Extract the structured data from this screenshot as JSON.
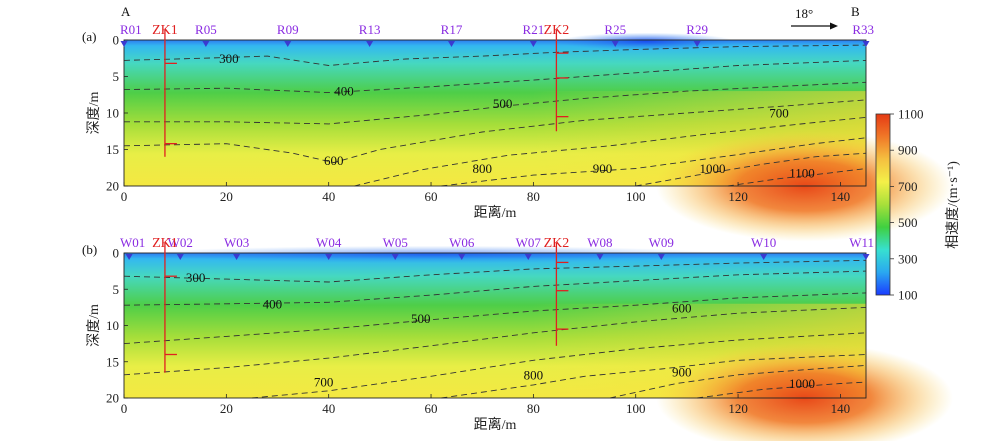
{
  "corner_labels": {
    "left": "A",
    "right": "B"
  },
  "direction_label": "18°",
  "colorbar": {
    "title": "相速度/(m·s⁻¹)",
    "ticks": [
      100,
      300,
      500,
      700,
      900,
      1100
    ],
    "range": [
      100,
      1100
    ],
    "colors": [
      "#1a3cff",
      "#2aa8f0",
      "#37e0d0",
      "#40d040",
      "#a8e03a",
      "#f4f048",
      "#f5c040",
      "#f07828",
      "#e53a14"
    ]
  },
  "chart_data": [
    {
      "type": "heatmap",
      "panel_label": "(a)",
      "xlabel": "距离/m",
      "ylabel": "深度/m",
      "xlim": [
        0,
        145
      ],
      "ylim": [
        0,
        20
      ],
      "x_ticks": [
        0,
        20,
        40,
        60,
        80,
        100,
        120,
        140
      ],
      "y_ticks": [
        0,
        5,
        10,
        15,
        20
      ],
      "stations": [
        {
          "name": "R01",
          "x": 0
        },
        {
          "name": "R05",
          "x": 16
        },
        {
          "name": "R09",
          "x": 32
        },
        {
          "name": "R13",
          "x": 48
        },
        {
          "name": "R17",
          "x": 64
        },
        {
          "name": "R21",
          "x": 80
        },
        {
          "name": "R25",
          "x": 96
        },
        {
          "name": "R29",
          "x": 112
        },
        {
          "name": "R33",
          "x": 145
        }
      ],
      "boreholes": [
        {
          "name": "ZK1",
          "x": 8,
          "depth": 16,
          "marks": [
            3.2,
            14.2
          ]
        },
        {
          "name": "ZK2",
          "x": 84.5,
          "depth": 12.5,
          "marks": [
            1.8,
            5.2,
            10.5
          ]
        }
      ],
      "contours": [
        {
          "label": "300",
          "label_x": 20.5,
          "label_y": 2.5,
          "points": [
            [
              0,
              2.8
            ],
            [
              15,
              2.5
            ],
            [
              28,
              2.2
            ],
            [
              40,
              3.5
            ],
            [
              55,
              2.6
            ],
            [
              70,
              2.2
            ],
            [
              84,
              1.7
            ],
            [
              100,
              1.3
            ],
            [
              120,
              0.9
            ],
            [
              145,
              0.7
            ]
          ]
        },
        {
          "label": "400",
          "label_x": 43,
          "label_y": 7.0,
          "points": [
            [
              0,
              6.8
            ],
            [
              20,
              6.6
            ],
            [
              40,
              7.2
            ],
            [
              60,
              6.4
            ],
            [
              84,
              5.3
            ],
            [
              100,
              4.5
            ],
            [
              120,
              3.5
            ],
            [
              145,
              2.8
            ]
          ]
        },
        {
          "label": "500",
          "label_x": 74,
          "label_y": 8.7,
          "points": [
            [
              0,
              11.2
            ],
            [
              20,
              11.2
            ],
            [
              40,
              11.5
            ],
            [
              60,
              10.2
            ],
            [
              75,
              9.0
            ],
            [
              90,
              8.0
            ],
            [
              110,
              7.0
            ],
            [
              130,
              6.3
            ],
            [
              145,
              5.8
            ]
          ]
        },
        {
          "label": "600",
          "label_x": 41,
          "label_y": 16.5,
          "points": [
            [
              0,
              14.5
            ],
            [
              20,
              14.2
            ],
            [
              33,
              15.5
            ],
            [
              41,
              16.8
            ],
            [
              50,
              15.0
            ],
            [
              70,
              12.6
            ],
            [
              90,
              11.0
            ],
            [
              110,
              10.0
            ],
            [
              130,
              9.0
            ],
            [
              145,
              8.2
            ]
          ]
        },
        {
          "label": "700",
          "label_x": 128,
          "label_y": 10.0,
          "points": [
            [
              45,
              20
            ],
            [
              58,
              17.8
            ],
            [
              75,
              15.8
            ],
            [
              95,
              14.5
            ],
            [
              115,
              12.8
            ],
            [
              135,
              11.3
            ],
            [
              145,
              10.6
            ]
          ]
        },
        {
          "label": "800",
          "label_x": 70,
          "label_y": 17.6,
          "points": [
            [
              62,
              20
            ],
            [
              80,
              18.5
            ],
            [
              100,
              17.6
            ],
            [
              120,
              15.7
            ],
            [
              135,
              14.2
            ],
            [
              145,
              13.4
            ]
          ]
        },
        {
          "label": "900",
          "label_x": 93.5,
          "label_y": 17.6,
          "points": [
            [
              100,
              20
            ],
            [
              112,
              18.5
            ],
            [
              125,
              17.0
            ],
            [
              135,
              16.0
            ],
            [
              145,
              15.5
            ]
          ]
        },
        {
          "label": "1000",
          "label_x": 115,
          "label_y": 17.6,
          "points": [
            [
              118,
              20
            ],
            [
              128,
              19.0
            ],
            [
              138,
              18.2
            ],
            [
              145,
              17.6
            ]
          ]
        },
        {
          "label": "1100",
          "label_x": 132.5,
          "label_y": 18.2,
          "points": []
        }
      ]
    },
    {
      "type": "heatmap",
      "panel_label": "(b)",
      "xlabel": "距离/m",
      "ylabel": "深度/m",
      "xlim": [
        0,
        145
      ],
      "ylim": [
        0,
        20
      ],
      "x_ticks": [
        0,
        20,
        40,
        60,
        80,
        100,
        120,
        140
      ],
      "y_ticks": [
        0,
        5,
        10,
        15,
        20
      ],
      "stations": [
        {
          "name": "W01",
          "x": 1
        },
        {
          "name": "W02",
          "x": 11
        },
        {
          "name": "W03",
          "x": 22
        },
        {
          "name": "W04",
          "x": 40
        },
        {
          "name": "W05",
          "x": 53
        },
        {
          "name": "W06",
          "x": 66
        },
        {
          "name": "W07",
          "x": 79
        },
        {
          "name": "W08",
          "x": 93
        },
        {
          "name": "W09",
          "x": 105
        },
        {
          "name": "W10",
          "x": 125
        },
        {
          "name": "W11",
          "x": 145
        }
      ],
      "boreholes": [
        {
          "name": "ZK1",
          "x": 8,
          "depth": 16.5,
          "marks": [
            3.2,
            14.0
          ]
        },
        {
          "name": "ZK2",
          "x": 84.5,
          "depth": 12.8,
          "marks": [
            1.3,
            5.2,
            10.5
          ]
        }
      ],
      "contours": [
        {
          "label": "300",
          "label_x": 14,
          "label_y": 3.4,
          "points": [
            [
              0,
              3.2
            ],
            [
              20,
              3.6
            ],
            [
              40,
              4.0
            ],
            [
              60,
              3.0
            ],
            [
              80,
              2.2
            ],
            [
              100,
              1.8
            ],
            [
              120,
              1.4
            ],
            [
              145,
              1.0
            ]
          ]
        },
        {
          "label": "400",
          "label_x": 29,
          "label_y": 7.0,
          "points": [
            [
              0,
              7.2
            ],
            [
              20,
              7.0
            ],
            [
              40,
              6.8
            ],
            [
              60,
              5.8
            ],
            [
              80,
              4.6
            ],
            [
              100,
              3.8
            ],
            [
              120,
              3.0
            ],
            [
              145,
              2.5
            ]
          ]
        },
        {
          "label": "500",
          "label_x": 58,
          "label_y": 9.0,
          "points": [
            [
              0,
              12.5
            ],
            [
              20,
              11.5
            ],
            [
              40,
              10.5
            ],
            [
              60,
              9.2
            ],
            [
              80,
              8.0
            ],
            [
              100,
              7.2
            ],
            [
              120,
              6.2
            ],
            [
              145,
              5.5
            ]
          ]
        },
        {
          "label": "600",
          "label_x": 109,
          "label_y": 7.6,
          "points": [
            [
              0,
              16.8
            ],
            [
              20,
              15.8
            ],
            [
              40,
              14.5
            ],
            [
              60,
              12.8
            ],
            [
              80,
              11.0
            ],
            [
              100,
              9.5
            ],
            [
              120,
              8.3
            ],
            [
              145,
              7.5
            ]
          ]
        },
        {
          "label": "700",
          "label_x": 39,
          "label_y": 17.8,
          "points": [
            [
              25,
              20
            ],
            [
              40,
              19.0
            ],
            [
              60,
              17.0
            ],
            [
              80,
              14.8
            ],
            [
              100,
              13.2
            ],
            [
              120,
              12.0
            ],
            [
              145,
              11.0
            ]
          ]
        },
        {
          "label": "800",
          "label_x": 80,
          "label_y": 16.8,
          "points": [
            [
              62,
              20
            ],
            [
              80,
              18.2
            ],
            [
              90,
              17.0
            ],
            [
              105,
              16.0
            ],
            [
              120,
              14.8
            ],
            [
              145,
              14.0
            ]
          ]
        },
        {
          "label": "900",
          "label_x": 109,
          "label_y": 16.4,
          "points": [
            [
              95,
              20
            ],
            [
              108,
              18.0
            ],
            [
              120,
              16.8
            ],
            [
              135,
              16.0
            ],
            [
              145,
              15.5
            ]
          ]
        },
        {
          "label": "1000",
          "label_x": 132.5,
          "label_y": 18.0,
          "points": [
            [
              112,
              20
            ],
            [
              125,
              18.8
            ],
            [
              140,
              18.0
            ],
            [
              145,
              17.8
            ]
          ]
        }
      ]
    }
  ]
}
